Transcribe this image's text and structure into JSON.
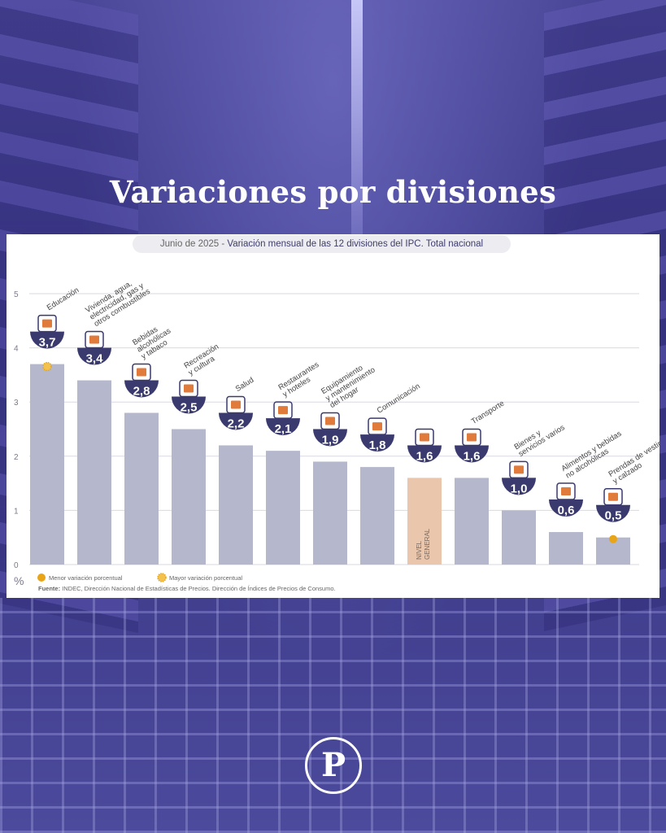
{
  "headline": "Variaciones por divisiones",
  "subtitle_date": "Junio de 2025 - ",
  "subtitle_text": "Variación mensual de las 12 divisiones del IPC. Total nacional",
  "legend": {
    "low": "Menor variación porcentual",
    "high": "Mayor variación porcentual"
  },
  "source_label": "Fuente:",
  "source_text": " INDEC, Dirección Nacional de Estadísticas de Precios. Dirección de Índices de Precios de Consumo.",
  "logo_letter": "P",
  "colors": {
    "bar": "#b5b8cc",
    "bar_general": "#e9c6ac",
    "badge": "#3a3a6e",
    "marker": "#e8a517",
    "grid": "#d9d9e0",
    "tick": "#7a7a8c"
  },
  "chart_data": {
    "type": "bar",
    "title": "Variación mensual de las 12 divisiones del IPC. Total nacional",
    "ylabel": "%",
    "ylim": [
      0,
      5
    ],
    "yticks": [
      "0",
      "1",
      "2",
      "3",
      "4",
      "5"
    ],
    "grid": true,
    "legend_placement": "bottom-left",
    "categories": [
      [
        "Educación"
      ],
      [
        "Vivienda, agua,",
        "electricidad, gas y",
        "otros combustibles"
      ],
      [
        "Bebidas",
        "alcohólicas",
        "y tabaco"
      ],
      [
        "Recreación",
        "y cultura"
      ],
      [
        "Salud"
      ],
      [
        "Restaurantes",
        "y hoteles"
      ],
      [
        "Equipamiento",
        "y mantenimiento",
        "del hogar"
      ],
      [
        "Comunicación"
      ],
      [
        ""
      ],
      [
        "Transporte"
      ],
      [
        "Bienes y",
        "servicios varios"
      ],
      [
        "Alimentos y bebidas",
        "no alcohólicas"
      ],
      [
        "Prendas de vestir",
        "y calzado"
      ]
    ],
    "values": [
      3.7,
      3.4,
      2.8,
      2.5,
      2.2,
      2.1,
      1.9,
      1.8,
      1.6,
      1.6,
      1.0,
      0.6,
      0.5
    ],
    "value_labels": [
      "3,7",
      "3,4",
      "2,8",
      "2,5",
      "2,2",
      "2,1",
      "1,9",
      "1,8",
      "1,6",
      "1,6",
      "1,0",
      "0,6",
      "0,5"
    ],
    "general_index": 8,
    "general_label": [
      "NIVEL",
      "GENERAL"
    ],
    "highest_index": 0,
    "lowest_index": 12,
    "icons": [
      "books-icon",
      "faucet-bulb-icon",
      "wine-icon",
      "umbrella-icon",
      "medical-cross-icon",
      "dining-icon",
      "appliance-icon",
      "phone-icon",
      "basket-icon",
      "bus-card-icon",
      "comb-icon",
      "food-icon",
      "clothes-icon"
    ]
  }
}
